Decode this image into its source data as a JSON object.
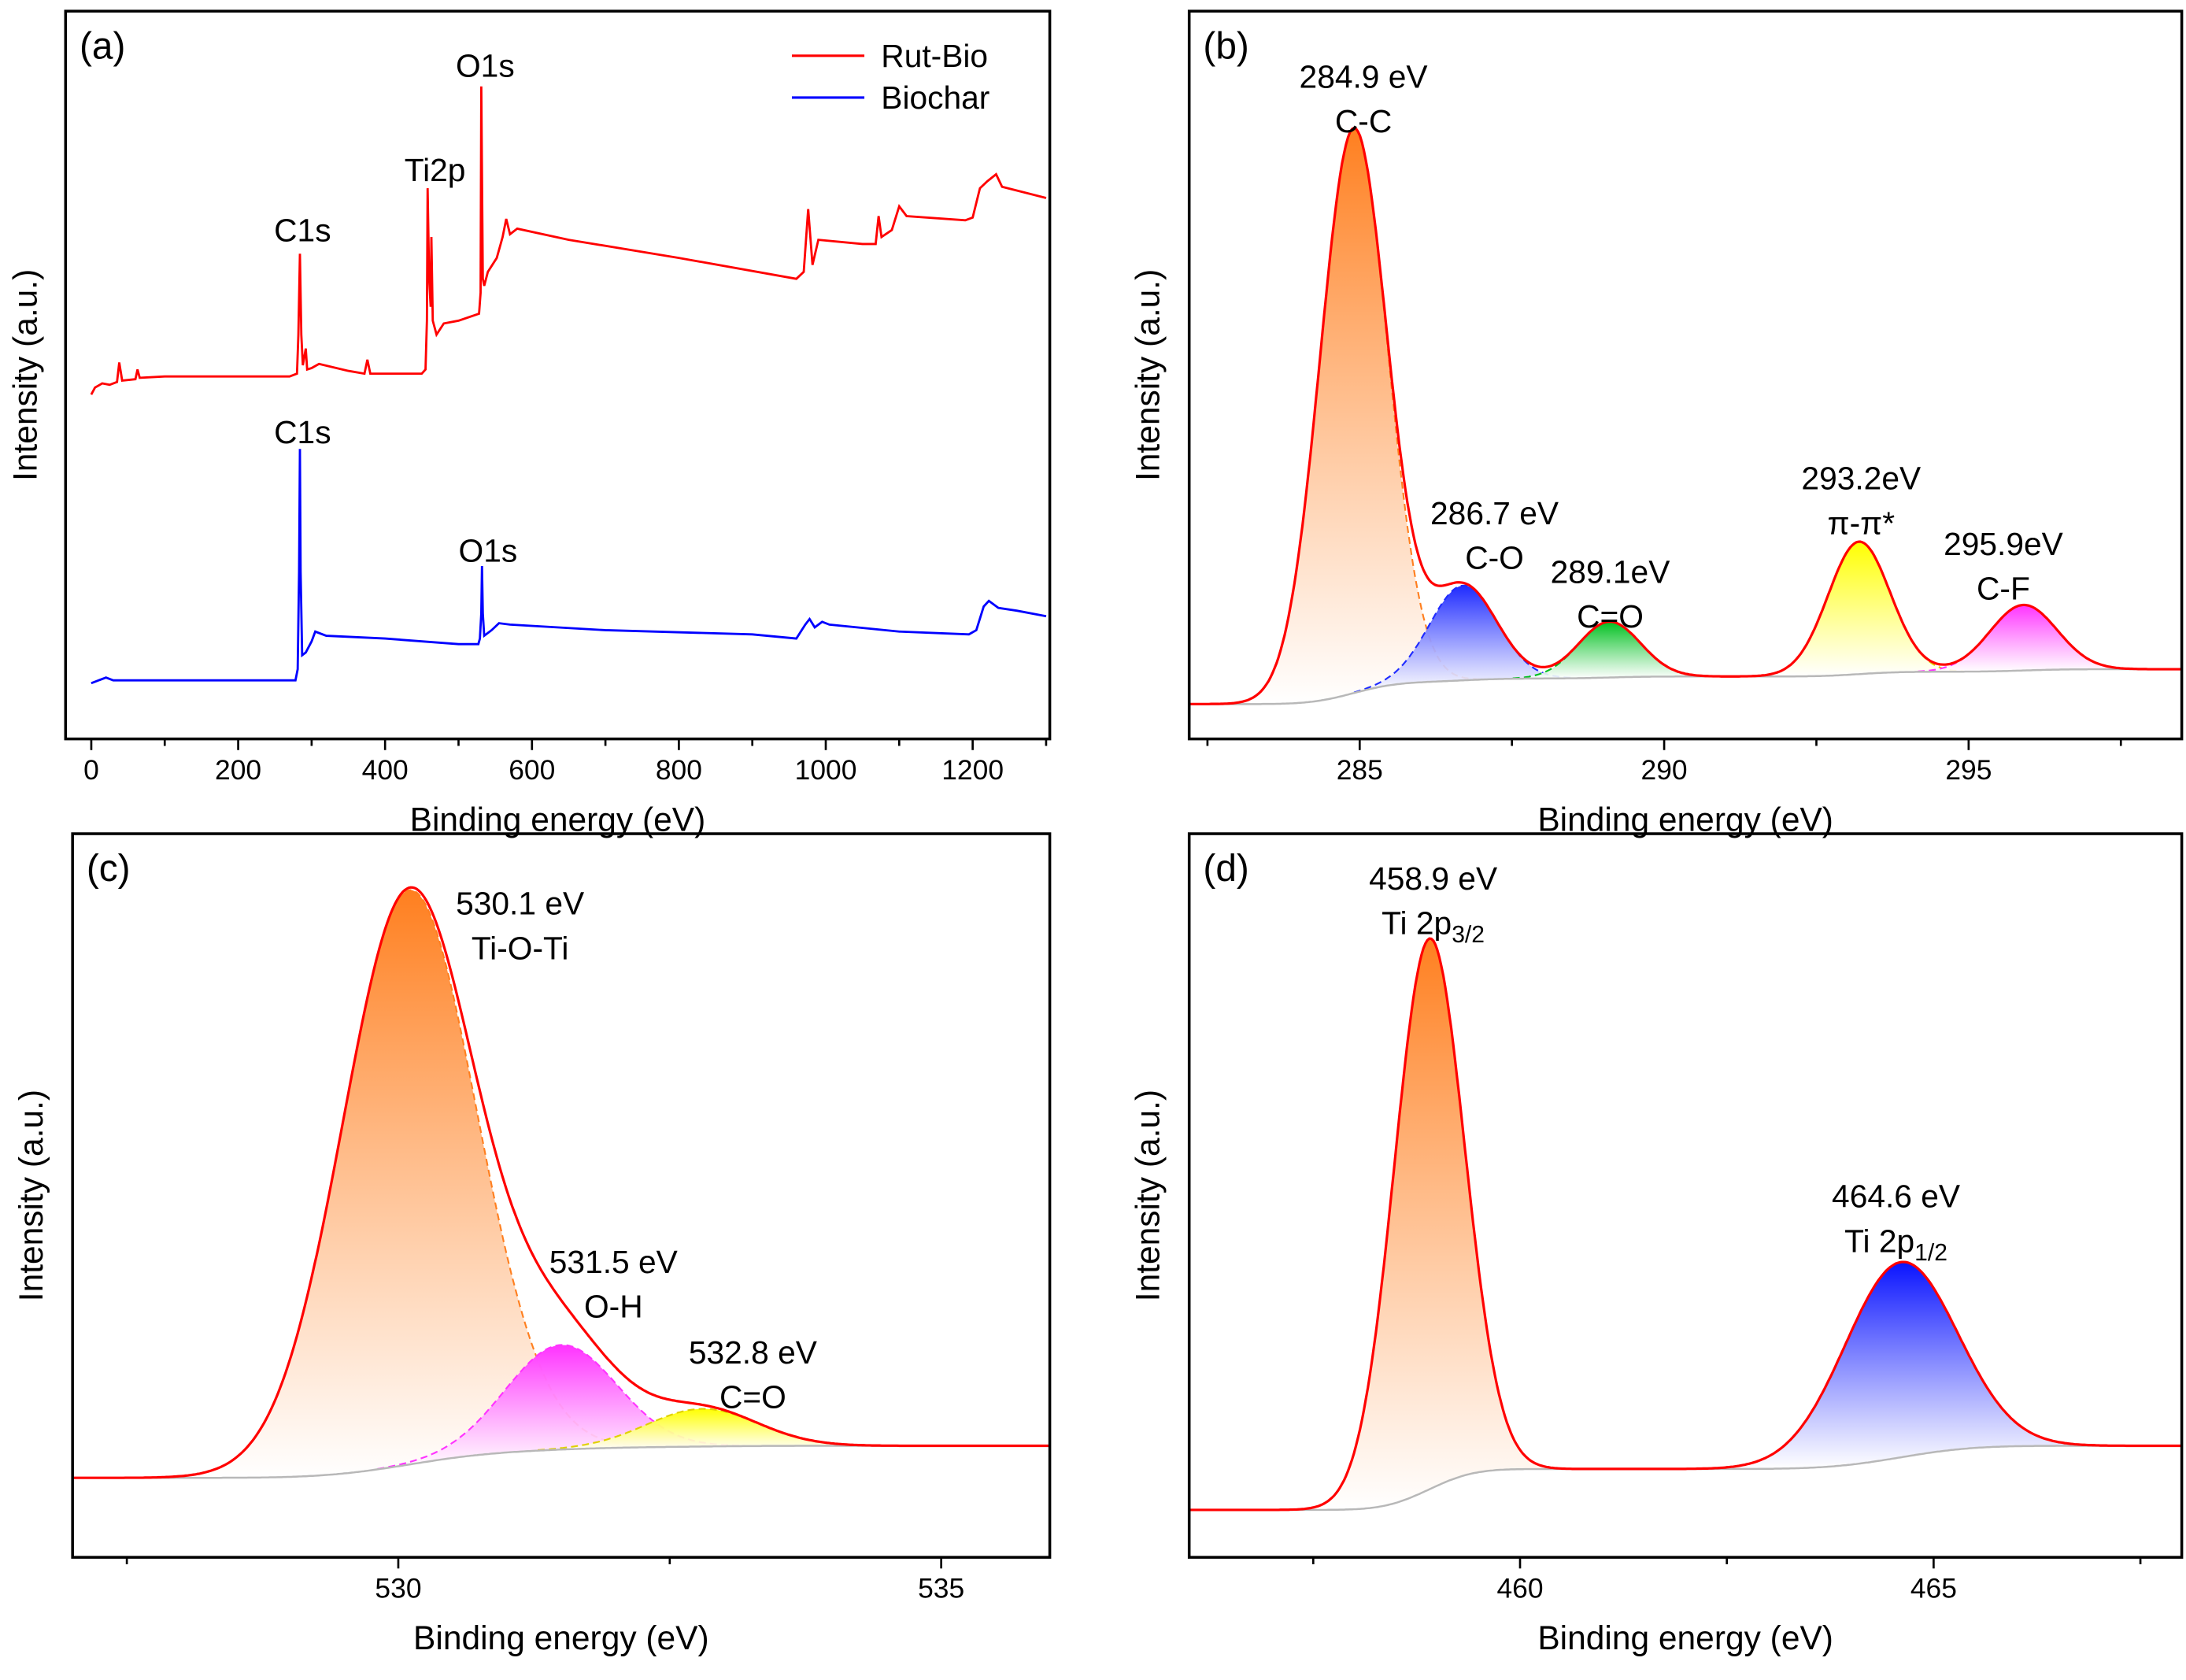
{
  "chart_data": [
    {
      "id": "a",
      "type": "line",
      "panel_label": "(a)",
      "xlabel": "Binding energy (eV)",
      "ylabel": "Intensity (a.u.)",
      "xlim": [
        -35,
        1305
      ],
      "ylim": [
        0,
        522
      ],
      "xticks": [
        0,
        200,
        400,
        600,
        800,
        1000,
        1200
      ],
      "xtick_labels": [
        "0",
        "200",
        "400",
        "600",
        "800",
        "1000",
        "1200"
      ],
      "legend_position": "top-right",
      "series": [
        {
          "name": "Rut-Bio",
          "color": "#ff0000",
          "points": [
            [
              0,
              247
            ],
            [
              5,
              252
            ],
            [
              15,
              255
            ],
            [
              25,
              254
            ],
            [
              35,
              256
            ],
            [
              38,
              270
            ],
            [
              42,
              257
            ],
            [
              60,
              258
            ],
            [
              63,
              265
            ],
            [
              66,
              259
            ],
            [
              100,
              260
            ],
            [
              200,
              260
            ],
            [
              270,
              260
            ],
            [
              280,
              262
            ],
            [
              282,
              290
            ],
            [
              284,
              348
            ],
            [
              286,
              290
            ],
            [
              288,
              268
            ],
            [
              292,
              280
            ],
            [
              294,
              265
            ],
            [
              300,
              266
            ],
            [
              310,
              269
            ],
            [
              350,
              264
            ],
            [
              372,
              262
            ],
            [
              376,
              272
            ],
            [
              380,
              262
            ],
            [
              420,
              262
            ],
            [
              450,
              262
            ],
            [
              455,
              265
            ],
            [
              457,
              300
            ],
            [
              458,
              395
            ],
            [
              460,
              330
            ],
            [
              462,
              310
            ],
            [
              463,
              360
            ],
            [
              465,
              300
            ],
            [
              470,
              290
            ],
            [
              480,
              298
            ],
            [
              500,
              300
            ],
            [
              528,
              305
            ],
            [
              530,
              320
            ],
            [
              531,
              468
            ],
            [
              533,
              330
            ],
            [
              535,
              325
            ],
            [
              540,
              335
            ],
            [
              552,
              345
            ],
            [
              560,
              360
            ],
            [
              565,
              373
            ],
            [
              570,
              362
            ],
            [
              580,
              366
            ],
            [
              650,
              358
            ],
            [
              800,
              345
            ],
            [
              960,
              330
            ],
            [
              970,
              335
            ],
            [
              976,
              380
            ],
            [
              982,
              340
            ],
            [
              990,
              358
            ],
            [
              1050,
              355
            ],
            [
              1068,
              355
            ],
            [
              1072,
              375
            ],
            [
              1076,
              360
            ],
            [
              1090,
              365
            ],
            [
              1100,
              382
            ],
            [
              1110,
              375
            ],
            [
              1190,
              372
            ],
            [
              1200,
              374
            ],
            [
              1210,
              395
            ],
            [
              1220,
              400
            ],
            [
              1232,
              405
            ],
            [
              1240,
              396
            ],
            [
              1270,
              392
            ],
            [
              1300,
              388
            ]
          ]
        },
        {
          "name": "Biochar",
          "color": "#0000ff",
          "points": [
            [
              0,
              40
            ],
            [
              10,
              42
            ],
            [
              20,
              44
            ],
            [
              30,
              42
            ],
            [
              100,
              42
            ],
            [
              200,
              42
            ],
            [
              278,
              42
            ],
            [
              281,
              50
            ],
            [
              283,
              120
            ],
            [
              284,
              208
            ],
            [
              285,
              120
            ],
            [
              287,
              60
            ],
            [
              292,
              62
            ],
            [
              300,
              70
            ],
            [
              305,
              77
            ],
            [
              320,
              74
            ],
            [
              400,
              72
            ],
            [
              500,
              68
            ],
            [
              527,
              68
            ],
            [
              529,
              72
            ],
            [
              531,
              90
            ],
            [
              532,
              124
            ],
            [
              533,
              90
            ],
            [
              535,
              74
            ],
            [
              545,
              78
            ],
            [
              555,
              83
            ],
            [
              570,
              82
            ],
            [
              700,
              78
            ],
            [
              900,
              75
            ],
            [
              960,
              72
            ],
            [
              972,
              82
            ],
            [
              978,
              86
            ],
            [
              985,
              80
            ],
            [
              995,
              84
            ],
            [
              1005,
              82
            ],
            [
              1100,
              77
            ],
            [
              1195,
              75
            ],
            [
              1205,
              78
            ],
            [
              1215,
              95
            ],
            [
              1222,
              99
            ],
            [
              1235,
              94
            ],
            [
              1260,
              92
            ],
            [
              1300,
              88
            ]
          ]
        }
      ],
      "annotations": [
        {
          "text": "C1s",
          "series": "Rut-Bio"
        },
        {
          "text": "Ti2p",
          "series": "Rut-Bio"
        },
        {
          "text": "O1s",
          "series": "Rut-Bio"
        },
        {
          "text": "C1s",
          "series": "Biochar"
        },
        {
          "text": "O1s",
          "series": "Biochar"
        }
      ]
    },
    {
      "id": "b",
      "type": "area",
      "panel_label": "(b)",
      "xlabel": "Binding energy (eV)",
      "ylabel": "Intensity (a.u.)",
      "xlim": [
        282.2,
        298.5
      ],
      "ylim": [
        0,
        522
      ],
      "xticks": [
        285,
        290,
        295
      ],
      "xtick_labels": [
        "285",
        "290",
        "295"
      ],
      "baseline": {
        "start": 25,
        "end": 50
      },
      "envelope_color": "#ff0000",
      "components": [
        {
          "center": 284.9,
          "amplitude": 405,
          "fwhm": 1.3,
          "color": "#ff7f1f",
          "label": "284.9 eV",
          "assignment": "C-C"
        },
        {
          "center": 286.7,
          "amplitude": 68,
          "fwhm": 1.3,
          "color": "#1f2bff",
          "label": "286.7 eV",
          "assignment": "C-O"
        },
        {
          "center": 289.1,
          "amplitude": 40,
          "fwhm": 1.2,
          "color": "#00c020",
          "label": "289.1eV",
          "assignment": "C=O"
        },
        {
          "center": 293.2,
          "amplitude": 95,
          "fwhm": 1.2,
          "color": "#ffff00",
          "label": "293.2eV",
          "assignment": "π-π*"
        },
        {
          "center": 295.9,
          "amplitude": 47,
          "fwhm": 1.3,
          "color": "#ff33ff",
          "label": "295.9eV",
          "assignment": "C-F"
        }
      ]
    },
    {
      "id": "c",
      "type": "area",
      "panel_label": "(c)",
      "xlabel": "Binding energy (eV)",
      "ylabel": "Intensity (a.u.)",
      "xlim": [
        527,
        536
      ],
      "ylim": [
        0,
        519
      ],
      "xticks": [
        530,
        535
      ],
      "xtick_labels": [
        "530",
        "535"
      ],
      "baseline": {
        "start": 57,
        "end": 80
      },
      "envelope_color": "#ff0000",
      "components": [
        {
          "center": 530.1,
          "amplitude": 412,
          "fwhm": 1.45,
          "color": "#ff7f1f",
          "label": "530.1 eV",
          "assignment": "Ti-O-Ti"
        },
        {
          "center": 531.5,
          "amplitude": 75,
          "fwhm": 1.2,
          "color": "#ff33ff",
          "label": "531.5 eV",
          "assignment": "O-H"
        },
        {
          "center": 532.8,
          "amplitude": 27,
          "fwhm": 1.2,
          "color": "#ffff00",
          "label": "532.8 eV",
          "assignment": "C=O"
        }
      ]
    },
    {
      "id": "d",
      "type": "area",
      "panel_label": "(d)",
      "xlabel": "Binding energy (eV)",
      "ylabel": "Intensity (a.u.)",
      "xlim": [
        456,
        468
      ],
      "ylim": [
        0,
        519
      ],
      "xticks": [
        460,
        465
      ],
      "xtick_labels": [
        "460",
        "465"
      ],
      "baseline": {
        "start": 34,
        "end": 80
      },
      "envelope_color": "#ff0000",
      "components": [
        {
          "center": 458.9,
          "amplitude": 395,
          "fwhm": 1.0,
          "color": "#ff7f1f",
          "label": "458.9 eV",
          "assignment": "Ti 2p",
          "sub": "3/2"
        },
        {
          "center": 464.6,
          "amplitude": 140,
          "fwhm": 1.6,
          "color": "#0a14ff",
          "label": "464.6 eV",
          "assignment": "Ti 2p",
          "sub": "1/2"
        }
      ]
    }
  ]
}
